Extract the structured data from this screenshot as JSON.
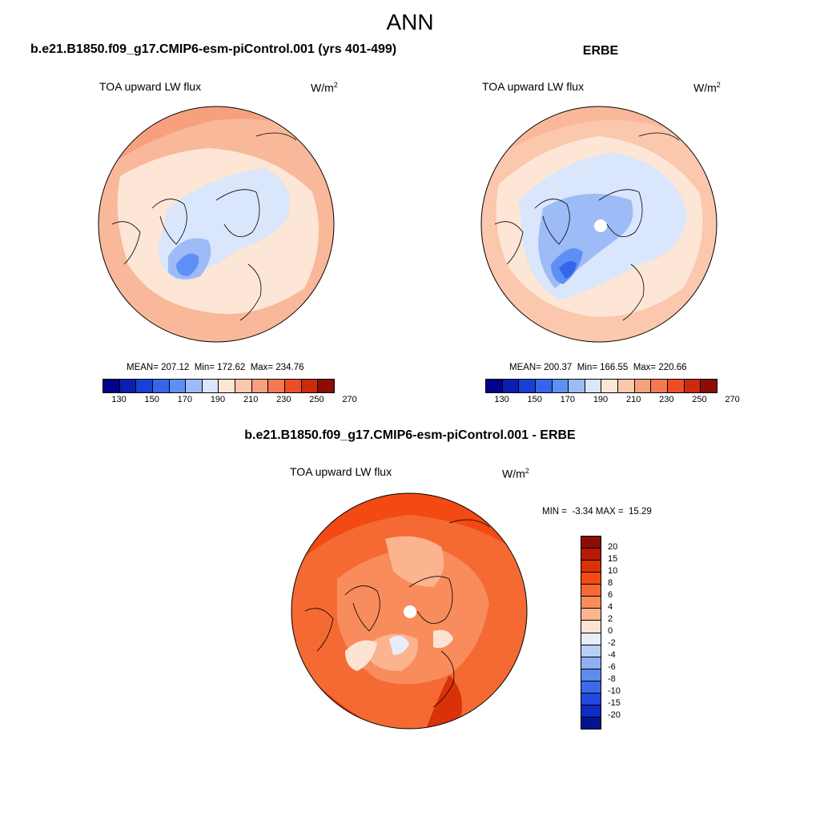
{
  "page_title": "ANN",
  "panels": {
    "model": {
      "title": "b.e21.B1850.f09_g17.CMIP6-esm-piControl.001 (yrs 401-499)",
      "variable": "TOA upward LW flux",
      "unit_base": "W/m",
      "unit_exp": "2",
      "stats": "MEAN= 207.12  Min= 172.62  Max= 234.76"
    },
    "obs": {
      "title": "ERBE",
      "variable": "TOA upward LW flux",
      "unit_base": "W/m",
      "unit_exp": "2",
      "stats": "MEAN= 200.37  Min= 166.55  Max= 220.66"
    },
    "diff": {
      "title": "b.e21.B1850.f09_g17.CMIP6-esm-piControl.001 - ERBE",
      "variable": "TOA upward LW flux",
      "unit_base": "W/m",
      "unit_exp": "2",
      "stats": "MIN =  -3.34 MAX =  15.29"
    }
  },
  "colorbar_abs": {
    "colors": [
      "#02028a",
      "#0a1fb0",
      "#1a3fd6",
      "#3466ea",
      "#5e8ff5",
      "#9dbbf7",
      "#d9e6fb",
      "#fde6d6",
      "#fbc7ad",
      "#f7a07e",
      "#f47852",
      "#ee4e24",
      "#cc2a0c",
      "#8c0d05"
    ],
    "tick_labels": [
      "130",
      "150",
      "170",
      "190",
      "210",
      "230",
      "250",
      "270"
    ]
  },
  "colorbar_diff": {
    "colors": [
      "#8c0d05",
      "#b81a06",
      "#d93208",
      "#f24a12",
      "#f56a33",
      "#f88c5c",
      "#fbb48e",
      "#fde4d2",
      "#e6eef9",
      "#b9cff4",
      "#8eb0f0",
      "#5e8bec",
      "#3d6ae8",
      "#2349e0",
      "#0f2cc8",
      "#04148f"
    ],
    "tick_labels": [
      "20",
      "15",
      "10",
      "8",
      "6",
      "4",
      "2",
      "0",
      "-2",
      "-4",
      "-6",
      "-8",
      "-10",
      "-15",
      "-20"
    ]
  }
}
